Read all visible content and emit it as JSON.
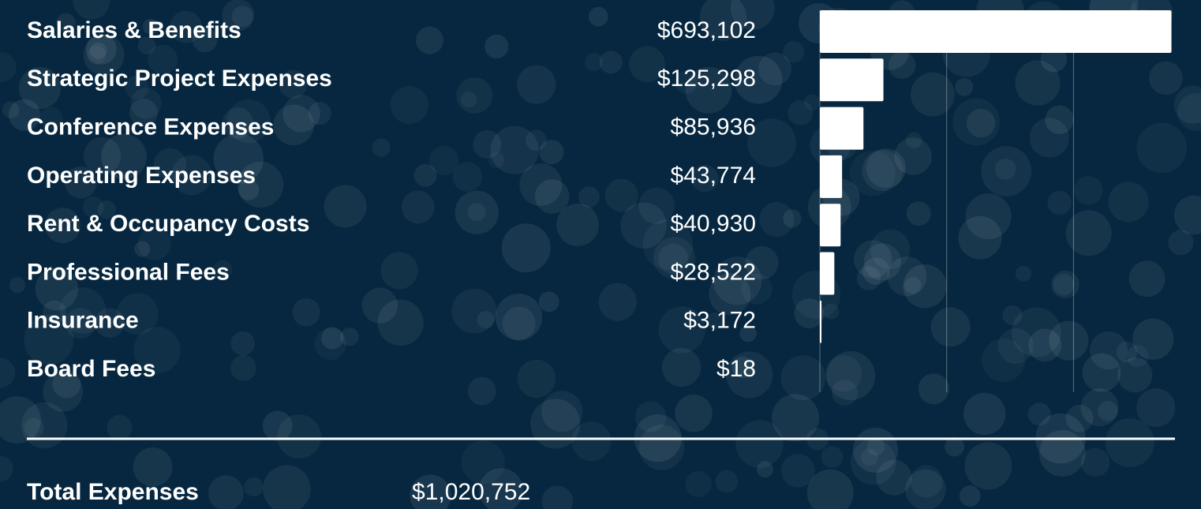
{
  "chart_data": {
    "type": "bar",
    "orientation": "horizontal",
    "categories": [
      "Salaries & Benefits",
      "Strategic Project Expenses",
      "Conference Expenses",
      "Operating Expenses",
      "Rent & Occupancy Costs",
      "Professional Fees",
      "Insurance",
      "Board Fees"
    ],
    "values": [
      693102,
      125298,
      85936,
      43774,
      40930,
      28522,
      3172,
      18
    ],
    "value_labels": [
      "$693,102",
      "$125,298",
      "$85,936",
      "$43,774",
      "$40,930",
      "$28,522",
      "$3,172",
      "$18"
    ],
    "color": "#ffffff",
    "xlim": [
      0,
      700000
    ],
    "xticks": [
      0,
      250000,
      500000
    ],
    "grid": true,
    "total": {
      "name": "Total Expenses",
      "label": "$1,020,752"
    }
  }
}
